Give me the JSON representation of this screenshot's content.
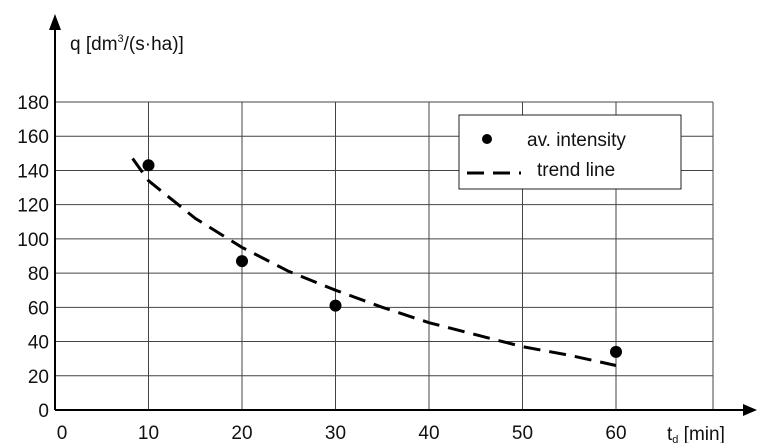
{
  "chart_data": {
    "type": "scatter",
    "title": "",
    "ylabel": {
      "prefix": "q [dm",
      "sup": "3",
      "suffix": "/(s·ha)]"
    },
    "xlabel": {
      "base": "t",
      "sub": "d",
      "suffix": " [min]"
    },
    "xlim": [
      0,
      70
    ],
    "ylim": [
      0,
      180
    ],
    "x_ticks": [
      0,
      10,
      20,
      30,
      40,
      50,
      60
    ],
    "y_ticks": [
      0,
      20,
      40,
      60,
      80,
      100,
      120,
      140,
      160,
      180
    ],
    "grid": true,
    "legend": {
      "placement": "top-right"
    },
    "series": [
      {
        "name": "av. intensity",
        "kind": "points",
        "x": [
          10,
          20,
          30,
          60
        ],
        "y": [
          143,
          87,
          61,
          34
        ]
      },
      {
        "name": "trend line",
        "kind": "dashed-line",
        "x": [
          8.3,
          10,
          15,
          20,
          25,
          30,
          35,
          40,
          45,
          50,
          55,
          60
        ],
        "y": [
          147,
          134,
          112,
          95,
          81,
          70,
          60,
          51,
          44,
          37,
          32,
          26
        ]
      }
    ]
  }
}
